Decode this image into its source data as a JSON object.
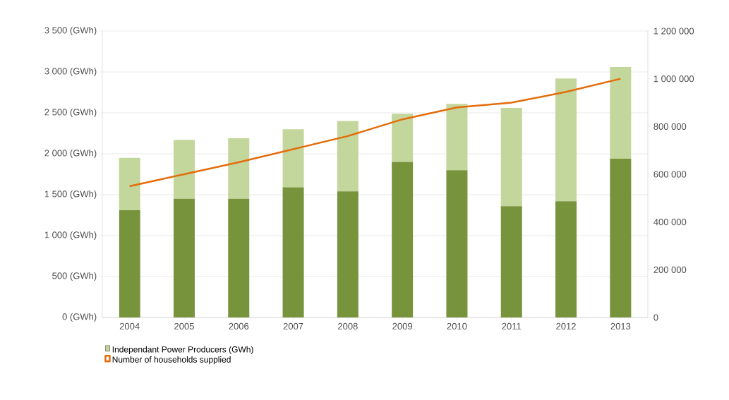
{
  "chart_data": {
    "type": "bar",
    "stacked": true,
    "categories": [
      "2004",
      "2005",
      "2006",
      "2007",
      "2008",
      "2009",
      "2010",
      "2011",
      "2012",
      "2013"
    ],
    "series": [
      {
        "color": "#77933c",
        "values": [
          1310,
          1450,
          1450,
          1590,
          1540,
          1900,
          1800,
          1360,
          1420,
          1940
        ]
      },
      {
        "name": "Independant Power Producers (GWh)",
        "color": "#c3d69b",
        "values": [
          640,
          720,
          740,
          710,
          860,
          590,
          810,
          1200,
          1500,
          1120
        ]
      },
      {
        "name": "Number of households supplied",
        "type": "line",
        "axis": "y2",
        "color": "#e46c0a",
        "values": [
          550000,
          600000,
          650000,
          705000,
          760000,
          830000,
          880000,
          900000,
          945000,
          1000000
        ]
      }
    ],
    "ylim": [
      0,
      3500
    ],
    "yticks": [
      {
        "value": 0,
        "label": "0 (GWh)"
      },
      {
        "value": 500,
        "label": "500 (GWh)"
      },
      {
        "value": 1000,
        "label": "1 000 (GWh)"
      },
      {
        "value": 1500,
        "label": "1 500 (GWh)"
      },
      {
        "value": 2000,
        "label": "2 000 (GWh)"
      },
      {
        "value": 2500,
        "label": "2 500 (GWh)"
      },
      {
        "value": 3000,
        "label": "3 000 (GWh)"
      },
      {
        "value": 3500,
        "label": "3 500 (GWh)"
      }
    ],
    "y2lim": [
      0,
      1200000
    ],
    "y2ticks": [
      0,
      {
        "value": 200000,
        "label": "200 000"
      },
      {
        "value": 400000,
        "label": "400 000"
      },
      {
        "value": 600000,
        "label": "600 000"
      },
      {
        "value": 800000,
        "label": "800 000"
      },
      {
        "value": 1000000,
        "label": "1 000 000"
      },
      {
        "value": 1200000,
        "label": "1 200 000"
      }
    ],
    "grid": "y",
    "legend": "bottom"
  }
}
